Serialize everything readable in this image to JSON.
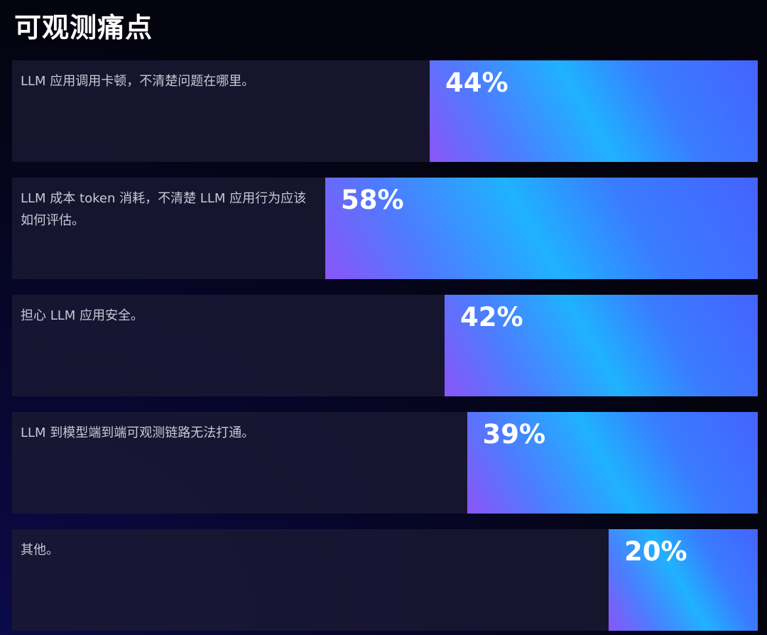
{
  "title": "可观测痛点",
  "chart_data": {
    "type": "bar",
    "orientation": "horizontal",
    "categories": [
      "LLM 应用调用卡顿，不清楚问题在哪里。",
      "LLM 成本 token 消耗，不清楚 LLM 应用行为应该如何评估。",
      "担心 LLM 应用安全。",
      "LLM 到模型端到端可观测链路无法打通。",
      "其他。"
    ],
    "values": [
      44,
      58,
      42,
      39,
      20
    ],
    "value_labels": [
      "44%",
      "58%",
      "42%",
      "39%",
      "20%"
    ],
    "xlim": [
      0,
      100
    ],
    "grid": false,
    "colors": {
      "gradient_start": "#8a55f7",
      "gradient_mid": "#1fb2ff",
      "gradient_end": "#4463ff",
      "row_bg": "#1a1932"
    }
  }
}
